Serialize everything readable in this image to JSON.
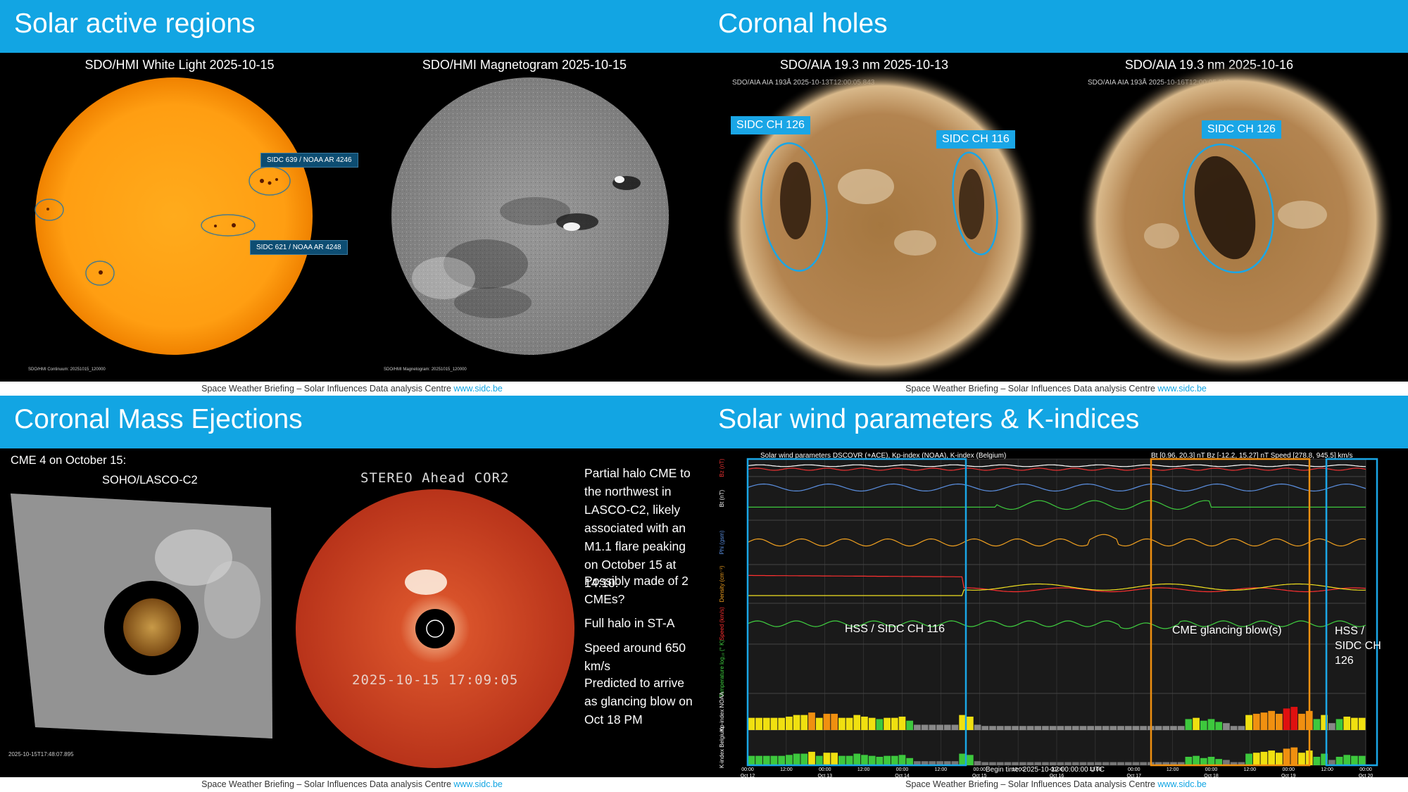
{
  "footer": {
    "text": "Space Weather Briefing – Solar Influences Data analysis Centre ",
    "link": "www.sidc.be"
  },
  "q1": {
    "heading": "Solar active regions",
    "left_title": "SDO/HMI White Light 2025-10-15",
    "right_title": "SDO/HMI Magnetogram 2025-10-15",
    "label_a": "SIDC 639 / NOAA AR 4246",
    "label_b": "SIDC 621 / NOAA AR 4248",
    "caption_left": "SDO/HMI  Continuum:  20251015_120000",
    "caption_right": "SDO/HMI  Magnetogram:  20251015_120000"
  },
  "q2": {
    "heading": "Coronal holes",
    "left_title": "SDO/AIA 19.3 nm 2025-10-13",
    "right_title": "SDO/AIA 19.3 nm 2025-10-16",
    "left_stamp": "SDO/AIA AIA 193Å 2025-10-13T12:00:05.843",
    "right_stamp": "SDO/AIA AIA 193Å 2025-10-16T12:00:05.843",
    "ch_a": "SIDC CH 126",
    "ch_b": "SIDC CH 116",
    "ch_c": "SIDC CH 126"
  },
  "q3": {
    "heading": "Coronal Mass Ejections",
    "cme_title": "CME 4 on October 15:",
    "lasco_label": "SOHO/LASCO-C2",
    "stereo_label": "STEREO Ahead COR2",
    "stereo_time": "2025-10-15  17:09:05",
    "lasco_stamp": "2025-10-15T17:48:07.895",
    "notes": [
      "Partial halo CME to the northwest in LASCO-C2, likely associated with an M1.1 flare peaking on October 15 at 14:10.",
      "Possibly made of 2 CMEs?",
      "Full halo in ST-A",
      "Speed around 650 km/s",
      "Predicted to arrive as glancing blow on Oct 18 PM"
    ]
  },
  "q4": {
    "heading": "Solar wind parameters & K-indices",
    "chart_title": "Solar wind parameters DSCOVR (+ACE), Kp-index (NOAA), K-index (Belgium)",
    "ranges": "Bt [0.96, 20.3] nT   Bz [-12.2, 15.27] nT   Speed [278.8, 945.5] km/s",
    "begin_time": "Begin time: 2025-10-12 00:00:00 UTC",
    "annotations": {
      "hss": "HSS / SIDC CH 116",
      "cme": "CME glancing blow(s)",
      "hss2a": "HSS /",
      "hss2b": "SIDC CH",
      "hss2c": "126"
    },
    "panel_labels": [
      "Bz (nT)",
      "Bt (nT)",
      "Phi (gsm)",
      "Density (cm⁻³)",
      "Speed (km/s)",
      "Temperature log₁₀ (° K)",
      "Kp-index NOAA",
      "K-index Belgium"
    ],
    "x_ticks": [
      "00:00\nOct 12",
      "12:00",
      "00:00\nOct 13",
      "12:00",
      "00:00\nOct 14",
      "12:00",
      "00:00\nOct 15",
      "12:00",
      "00:00\nOct 16",
      "12:00",
      "00:00\nOct 17",
      "12:00",
      "00:00\nOct 18",
      "12:00",
      "00:00\nOct 19",
      "12:00",
      "00:00\nOct 20"
    ],
    "kp_values": [
      3,
      3,
      3,
      3,
      3,
      3.3,
      3.7,
      3.7,
      4.3,
      3,
      4,
      4,
      3,
      3,
      3.7,
      3.3,
      3,
      2.7,
      3,
      3,
      3.3,
      2.3,
      1.3,
      1.3,
      1.3,
      1.3,
      1.3,
      1.3,
      3.7,
      3.3,
      1.3,
      1,
      1,
      1,
      1,
      1,
      1,
      1,
      1,
      1,
      1,
      1,
      1,
      1,
      1,
      1,
      1,
      1,
      1,
      1,
      1,
      1,
      1,
      1,
      1,
      1,
      1,
      1,
      2.7,
      3,
      2.3,
      2.7,
      2,
      1.7,
      1,
      1,
      3.7,
      4,
      4.3,
      4.7,
      4,
      5.3,
      5.7,
      4,
      4.7,
      2.7,
      3.7,
      1.7,
      2.7,
      3.3,
      3,
      3
    ]
  }
}
